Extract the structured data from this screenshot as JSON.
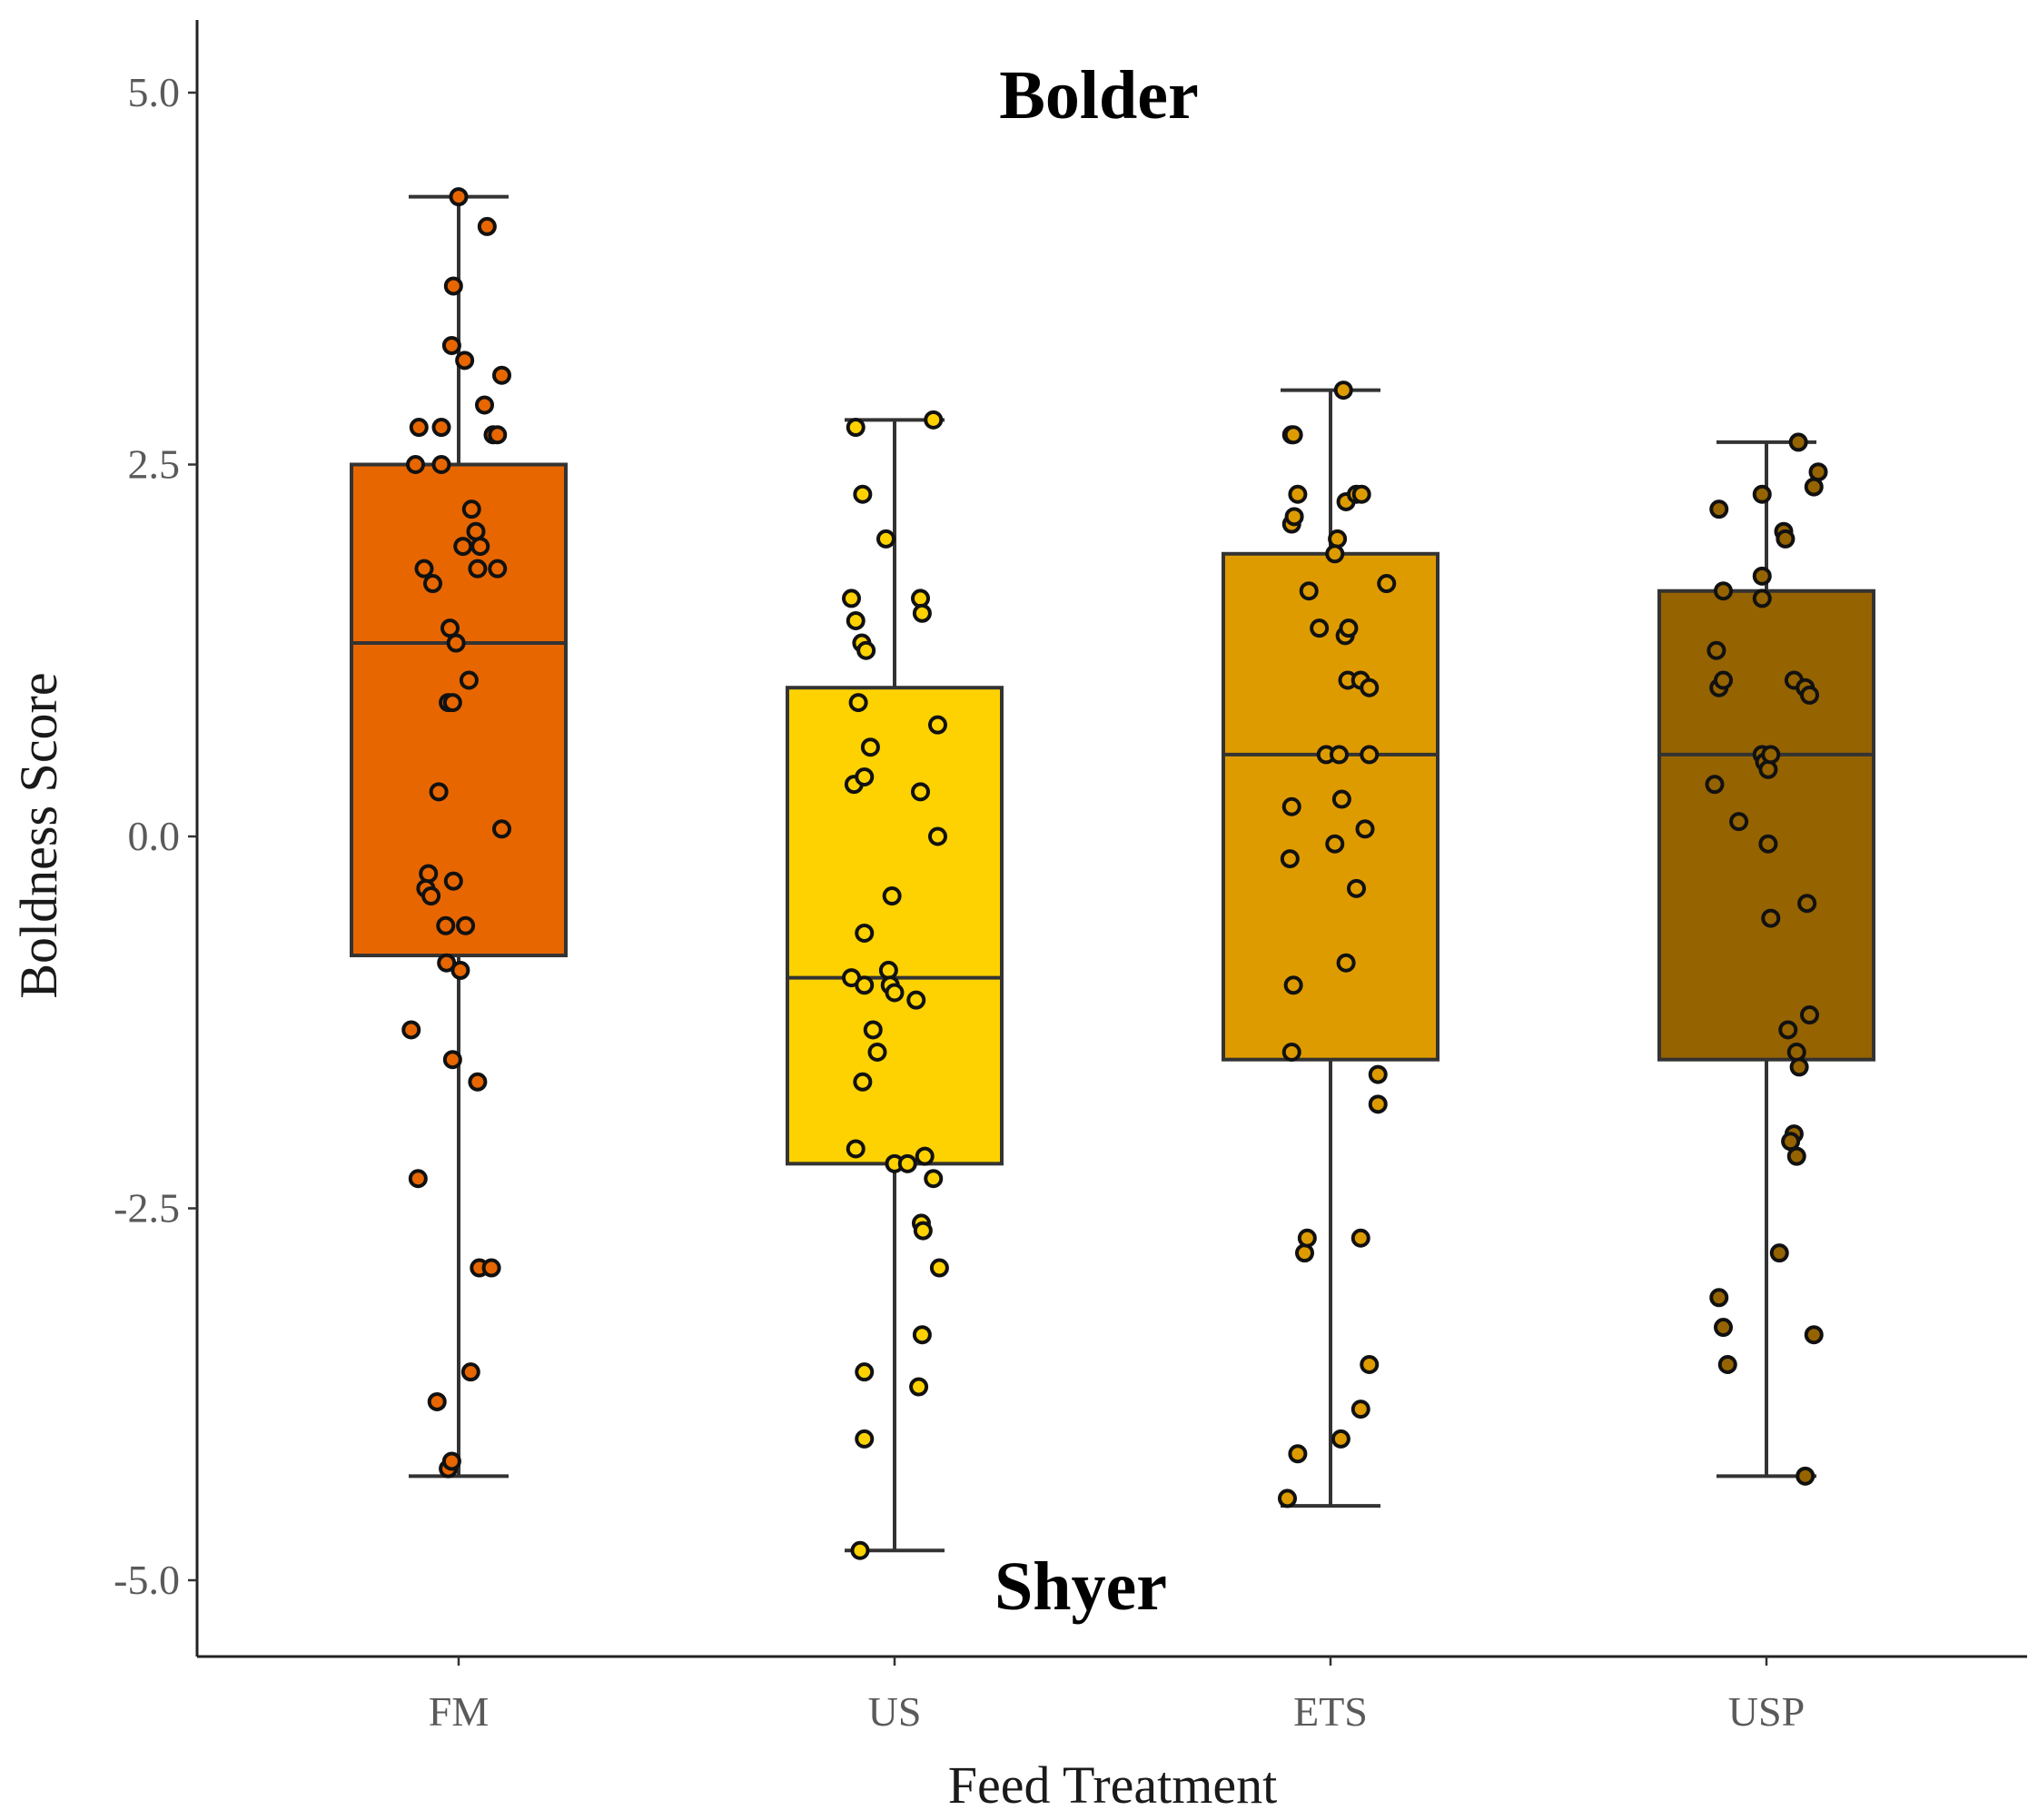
{
  "chart_data": {
    "type": "box",
    "title": "",
    "xlabel": "Feed Treatment",
    "ylabel": "Boldness Score",
    "ylim": [
      -5.5,
      5.5
    ],
    "yticks": [
      5.0,
      2.5,
      0.0,
      -2.5,
      -5.0
    ],
    "ytick_labels": [
      "5.0",
      "2.5",
      "0.0",
      "-2.5",
      "-5.0"
    ],
    "categories": [
      "FM",
      "US",
      "ETS",
      "USP"
    ],
    "annotations": {
      "top": "Bolder",
      "bottom": "Shyer"
    },
    "groups": [
      {
        "name": "FM",
        "color": "#E76600",
        "q1": -0.8,
        "median": 1.3,
        "q3": 2.5,
        "whisker_low": -4.3,
        "whisker_high": 4.3,
        "points": [
          [
            -0.0,
            4.3
          ],
          [
            0.33,
            4.1
          ],
          [
            -0.06,
            3.7
          ],
          [
            -0.08,
            3.3
          ],
          [
            0.07,
            3.2
          ],
          [
            0.5,
            3.1
          ],
          [
            0.3,
            2.9
          ],
          [
            -0.46,
            2.75
          ],
          [
            -0.2,
            2.75
          ],
          [
            0.4,
            2.7
          ],
          [
            0.45,
            2.7
          ],
          [
            -0.5,
            2.5
          ],
          [
            -0.2,
            2.5
          ],
          [
            0.15,
            2.2
          ],
          [
            0.2,
            2.05
          ],
          [
            0.05,
            1.95
          ],
          [
            0.25,
            1.95
          ],
          [
            -0.4,
            1.8
          ],
          [
            0.22,
            1.8
          ],
          [
            0.45,
            1.8
          ],
          [
            -0.3,
            1.7
          ],
          [
            -0.1,
            1.4
          ],
          [
            -0.03,
            1.3
          ],
          [
            0.12,
            1.05
          ],
          [
            -0.12,
            0.9
          ],
          [
            -0.07,
            0.9
          ],
          [
            -0.23,
            0.3
          ],
          [
            0.5,
            0.05
          ],
          [
            -0.35,
            -0.25
          ],
          [
            -0.38,
            -0.35
          ],
          [
            -0.32,
            -0.4
          ],
          [
            -0.06,
            -0.3
          ],
          [
            -0.15,
            -0.6
          ],
          [
            0.08,
            -0.6
          ],
          [
            -0.14,
            -0.85
          ],
          [
            0.02,
            -0.9
          ],
          [
            -0.55,
            -1.3
          ],
          [
            -0.07,
            -1.5
          ],
          [
            0.22,
            -1.65
          ],
          [
            -0.47,
            -2.3
          ],
          [
            0.24,
            -2.9
          ],
          [
            0.38,
            -2.9
          ],
          [
            0.14,
            -3.6
          ],
          [
            -0.25,
            -3.8
          ],
          [
            -0.12,
            -4.25
          ],
          [
            -0.08,
            -4.2
          ]
        ]
      },
      {
        "name": "US",
        "color": "#FDD200",
        "q1": -2.2,
        "median": -0.95,
        "q3": 1.0,
        "whisker_low": -4.8,
        "whisker_high": 2.8,
        "points": [
          [
            -0.45,
            2.75
          ],
          [
            0.45,
            2.8
          ],
          [
            -0.37,
            2.3
          ],
          [
            -0.1,
            2.0
          ],
          [
            -0.5,
            1.6
          ],
          [
            0.3,
            1.6
          ],
          [
            -0.45,
            1.45
          ],
          [
            0.32,
            1.5
          ],
          [
            -0.38,
            1.3
          ],
          [
            -0.33,
            1.25
          ],
          [
            -0.42,
            0.9
          ],
          [
            0.5,
            0.75
          ],
          [
            -0.28,
            0.6
          ],
          [
            -0.47,
            0.35
          ],
          [
            -0.35,
            0.4
          ],
          [
            0.3,
            0.3
          ],
          [
            0.5,
            0.0
          ],
          [
            -0.03,
            -0.4
          ],
          [
            -0.35,
            -0.65
          ],
          [
            -0.5,
            -0.95
          ],
          [
            -0.35,
            -1.0
          ],
          [
            -0.07,
            -0.9
          ],
          [
            -0.05,
            -1.0
          ],
          [
            0.0,
            -1.05
          ],
          [
            0.25,
            -1.1
          ],
          [
            -0.25,
            -1.3
          ],
          [
            -0.2,
            -1.45
          ],
          [
            -0.37,
            -1.65
          ],
          [
            -0.45,
            -2.1
          ],
          [
            0.0,
            -2.2
          ],
          [
            0.15,
            -2.2
          ],
          [
            0.35,
            -2.15
          ],
          [
            0.45,
            -2.3
          ],
          [
            0.31,
            -2.6
          ],
          [
            0.33,
            -2.65
          ],
          [
            0.52,
            -2.9
          ],
          [
            0.32,
            -3.35
          ],
          [
            0.28,
            -3.7
          ],
          [
            -0.35,
            -3.6
          ],
          [
            -0.35,
            -4.05
          ],
          [
            -0.4,
            -4.8
          ]
        ]
      },
      {
        "name": "ETS",
        "color": "#DE9B00",
        "q1": -1.5,
        "median": 0.55,
        "q3": 1.9,
        "whisker_low": -4.5,
        "whisker_high": 3.0,
        "points": [
          [
            0.15,
            3.0
          ],
          [
            -0.45,
            2.7
          ],
          [
            -0.43,
            2.7
          ],
          [
            -0.38,
            2.3
          ],
          [
            -0.45,
            2.1
          ],
          [
            -0.42,
            2.15
          ],
          [
            0.18,
            2.25
          ],
          [
            0.3,
            2.3
          ],
          [
            0.36,
            2.3
          ],
          [
            0.08,
            2.0
          ],
          [
            0.05,
            1.9
          ],
          [
            0.65,
            1.7
          ],
          [
            -0.25,
            1.65
          ],
          [
            -0.13,
            1.4
          ],
          [
            0.17,
            1.35
          ],
          [
            0.21,
            1.4
          ],
          [
            0.2,
            1.05
          ],
          [
            0.35,
            1.05
          ],
          [
            0.45,
            1.0
          ],
          [
            -0.05,
            0.55
          ],
          [
            0.1,
            0.55
          ],
          [
            0.45,
            0.55
          ],
          [
            -0.45,
            0.2
          ],
          [
            0.13,
            0.25
          ],
          [
            0.4,
            0.05
          ],
          [
            -0.47,
            -0.15
          ],
          [
            0.05,
            -0.05
          ],
          [
            0.3,
            -0.35
          ],
          [
            0.18,
            -0.85
          ],
          [
            -0.43,
            -1.0
          ],
          [
            -0.45,
            -1.45
          ],
          [
            0.55,
            -1.6
          ],
          [
            0.55,
            -1.8
          ],
          [
            -0.3,
            -2.8
          ],
          [
            -0.27,
            -2.7
          ],
          [
            0.35,
            -2.7
          ],
          [
            0.45,
            -3.55
          ],
          [
            0.35,
            -3.85
          ],
          [
            0.12,
            -4.05
          ],
          [
            -0.38,
            -4.15
          ],
          [
            -0.5,
            -4.45
          ]
        ]
      },
      {
        "name": "USP",
        "color": "#956300",
        "q1": -1.5,
        "median": 0.55,
        "q3": 1.65,
        "whisker_low": -4.3,
        "whisker_high": 2.65,
        "points": [
          [
            0.37,
            2.65
          ],
          [
            0.6,
            2.45
          ],
          [
            0.55,
            2.35
          ],
          [
            -0.05,
            2.3
          ],
          [
            -0.55,
            2.2
          ],
          [
            0.2,
            2.05
          ],
          [
            0.22,
            2.0
          ],
          [
            -0.05,
            1.75
          ],
          [
            -0.5,
            1.65
          ],
          [
            -0.05,
            1.6
          ],
          [
            -0.58,
            1.25
          ],
          [
            -0.55,
            1.0
          ],
          [
            -0.5,
            1.05
          ],
          [
            0.32,
            1.05
          ],
          [
            0.45,
            1.0
          ],
          [
            0.5,
            0.95
          ],
          [
            -0.05,
            0.55
          ],
          [
            -0.02,
            0.5
          ],
          [
            0.02,
            0.45
          ],
          [
            0.05,
            0.55
          ],
          [
            -0.6,
            0.35
          ],
          [
            -0.32,
            0.1
          ],
          [
            0.02,
            -0.05
          ],
          [
            0.47,
            -0.45
          ],
          [
            0.05,
            -0.55
          ],
          [
            0.5,
            -1.2
          ],
          [
            0.25,
            -1.3
          ],
          [
            0.35,
            -1.45
          ],
          [
            0.38,
            -1.55
          ],
          [
            0.32,
            -2.0
          ],
          [
            0.28,
            -2.05
          ],
          [
            0.35,
            -2.15
          ],
          [
            0.15,
            -2.8
          ],
          [
            -0.55,
            -3.1
          ],
          [
            -0.5,
            -3.3
          ],
          [
            -0.45,
            -3.55
          ],
          [
            0.55,
            -3.35
          ],
          [
            0.45,
            -4.3
          ]
        ]
      }
    ]
  }
}
